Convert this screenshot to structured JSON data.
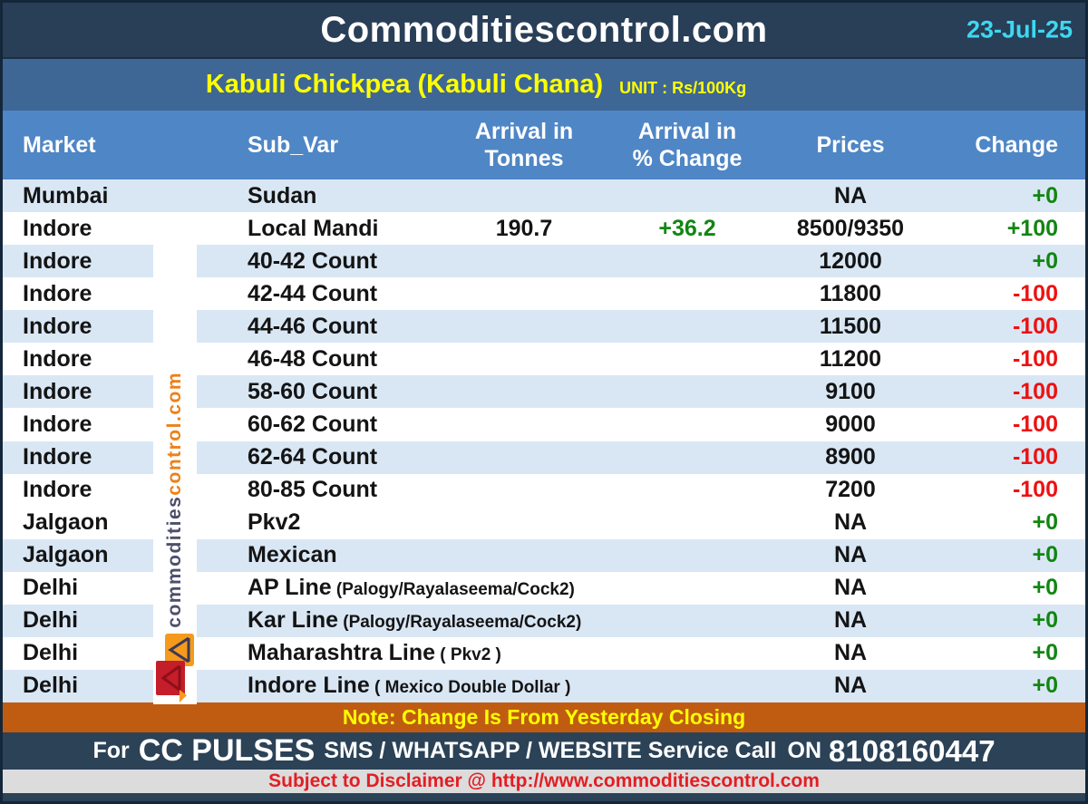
{
  "header": {
    "site_title": "Commoditiescontrol.com",
    "date": "23-Jul-25"
  },
  "subtitle": {
    "commodity": "Kabuli Chickpea (Kabuli Chana)",
    "unit": "UNIT : Rs/100Kg"
  },
  "table": {
    "columns": [
      {
        "lines": [
          "Market"
        ]
      },
      {
        "lines": [
          "Sub_Var"
        ]
      },
      {
        "lines": [
          "Arrival in",
          "Tonnes"
        ]
      },
      {
        "lines": [
          "Arrival  in",
          "% Change"
        ]
      },
      {
        "lines": [
          "Prices"
        ]
      },
      {
        "lines": [
          "Change"
        ]
      }
    ],
    "rows": [
      {
        "market": "Mumbai",
        "sub_var": "Sudan",
        "sub_var_note": "",
        "arrival": "",
        "arrival_pct": "",
        "price": "NA",
        "change": "+0",
        "shade": true
      },
      {
        "market": "Indore",
        "sub_var": "Local Mandi",
        "sub_var_note": "",
        "arrival": "190.7",
        "arrival_pct": "+36.2",
        "price": "8500/9350",
        "change": "+100",
        "shade": false
      },
      {
        "market": "Indore",
        "sub_var": "40-42 Count",
        "sub_var_note": "",
        "arrival": "",
        "arrival_pct": "",
        "price": "12000",
        "change": "+0",
        "shade": true
      },
      {
        "market": "Indore",
        "sub_var": "42-44 Count",
        "sub_var_note": "",
        "arrival": "",
        "arrival_pct": "",
        "price": "11800",
        "change": "-100",
        "shade": false
      },
      {
        "market": "Indore",
        "sub_var": "44-46 Count",
        "sub_var_note": "",
        "arrival": "",
        "arrival_pct": "",
        "price": "11500",
        "change": "-100",
        "shade": true
      },
      {
        "market": "Indore",
        "sub_var": "46-48 Count",
        "sub_var_note": "",
        "arrival": "",
        "arrival_pct": "",
        "price": "11200",
        "change": "-100",
        "shade": false
      },
      {
        "market": "Indore",
        "sub_var": "58-60 Count",
        "sub_var_note": "",
        "arrival": "",
        "arrival_pct": "",
        "price": "9100",
        "change": "-100",
        "shade": true
      },
      {
        "market": "Indore",
        "sub_var": "60-62 Count",
        "sub_var_note": "",
        "arrival": "",
        "arrival_pct": "",
        "price": "9000",
        "change": "-100",
        "shade": false
      },
      {
        "market": "Indore",
        "sub_var": "62-64 Count",
        "sub_var_note": "",
        "arrival": "",
        "arrival_pct": "",
        "price": "8900",
        "change": "-100",
        "shade": true
      },
      {
        "market": "Indore",
        "sub_var": "80-85 Count",
        "sub_var_note": "",
        "arrival": "",
        "arrival_pct": "",
        "price": "7200",
        "change": "-100",
        "shade": false
      },
      {
        "market": "Jalgaon",
        "sub_var": "Pkv2",
        "sub_var_note": "",
        "arrival": "",
        "arrival_pct": "",
        "price": "NA",
        "change": "+0",
        "shade": false
      },
      {
        "market": "Jalgaon",
        "sub_var": "Mexican",
        "sub_var_note": "",
        "arrival": "",
        "arrival_pct": "",
        "price": "NA",
        "change": "+0",
        "shade": true
      },
      {
        "market": "Delhi",
        "sub_var": "AP Line",
        "sub_var_note": "(Palogy/Rayalaseema/Cock2)",
        "arrival": "",
        "arrival_pct": "",
        "price": "NA",
        "change": "+0",
        "shade": false
      },
      {
        "market": "Delhi",
        "sub_var": "Kar Line",
        "sub_var_note": "(Palogy/Rayalaseema/Cock2)",
        "arrival": "",
        "arrival_pct": "",
        "price": "NA",
        "change": "+0",
        "shade": true
      },
      {
        "market": "Delhi",
        "sub_var": "Maharashtra Line",
        "sub_var_note": "( Pkv2 )",
        "arrival": "",
        "arrival_pct": "",
        "price": "NA",
        "change": "+0",
        "shade": false
      },
      {
        "market": "Delhi",
        "sub_var": "Indore Line",
        "sub_var_note": "( Mexico Double Dollar )",
        "arrival": "",
        "arrival_pct": "",
        "price": "NA",
        "change": "+0",
        "shade": true
      }
    ]
  },
  "watermark": {
    "text_dark": "commodities",
    "text_orange": "control.com"
  },
  "footer": {
    "note": "Note: Change Is From Yesterday Closing",
    "service_prefix": "For",
    "service_brand": "CC PULSES",
    "service_text": "SMS / WHATSAPP / WEBSITE Service Call",
    "service_on": "ON",
    "phone": "8108160447",
    "disclaimer": "Subject to Disclaimer @  http://www.commoditiescontrol.com"
  },
  "colors": {
    "topbar_navy": "#293e57",
    "date_cyan": "#3ed8f0",
    "subtitle_blue": "#3e6795",
    "header_blue": "#4f86c6",
    "row_stripe": "#d9e7f5",
    "positive_green": "#118611",
    "negative_red": "#ee1111",
    "note_orange": "#c05c12",
    "footer_navy": "#2b4257",
    "brand_cyan": "#27b7ea",
    "disclaimer_gray": "#dcdcdc",
    "disclaimer_red": "#e31e24",
    "title_yellow": "#ffff00",
    "watermark_orange": "#ef8018",
    "watermark_slate": "#4e4e6c"
  }
}
